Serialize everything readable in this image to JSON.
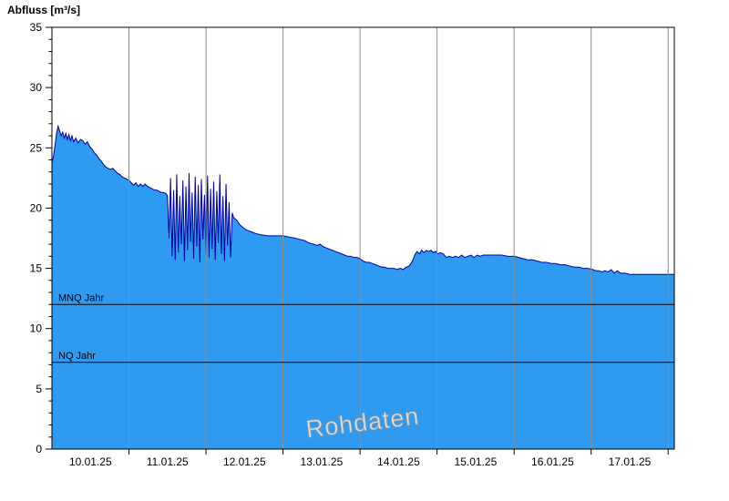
{
  "chart_data": {
    "type": "area",
    "title": "Abfluss [m³/s]",
    "series_name": "Abfluss",
    "unit": "m³/s",
    "watermark": "Rohdaten",
    "ylim": [
      0,
      35
    ],
    "xlim": [
      0,
      8.08
    ],
    "x_unit": "days from 10.01.25 00:00",
    "y_ticks": [
      0,
      5,
      10,
      15,
      20,
      25,
      30,
      35
    ],
    "x_day_labels": [
      "10.01.25",
      "11.01.25",
      "12.01.25",
      "13.01.25",
      "14.01.25",
      "15.01.25",
      "16.01.25",
      "17.01.25"
    ],
    "x_gridline_positions": [
      1,
      2,
      3,
      4,
      5,
      6,
      7,
      8
    ],
    "grid": "vertical-only",
    "legend": "none",
    "reference_lines": [
      {
        "label": "MNQ Jahr",
        "value": 12
      },
      {
        "label": "NQ Jahr",
        "value": 7.2
      }
    ],
    "colors": {
      "fill": "#2E9BF0",
      "line": "#0000A0",
      "grid": "#8c8c8c",
      "reference": "#000000",
      "watermark_fill": "#e2e2e2",
      "watermark_outline": "#9e9e9e",
      "axis": "#000000",
      "background": "#ffffff"
    },
    "points": [
      [
        0,
        23.8
      ],
      [
        0.02,
        24.3
      ],
      [
        0.04,
        25.2
      ],
      [
        0.06,
        26.2
      ],
      [
        0.08,
        26.8
      ],
      [
        0.1,
        26.4
      ],
      [
        0.12,
        26.0
      ],
      [
        0.14,
        26.3
      ],
      [
        0.16,
        25.8
      ],
      [
        0.18,
        26.2
      ],
      [
        0.2,
        25.7
      ],
      [
        0.22,
        26.1
      ],
      [
        0.24,
        25.6
      ],
      [
        0.26,
        26.0
      ],
      [
        0.28,
        25.5
      ],
      [
        0.31,
        25.8
      ],
      [
        0.34,
        25.4
      ],
      [
        0.37,
        25.7
      ],
      [
        0.4,
        25.6
      ],
      [
        0.43,
        25.3
      ],
      [
        0.46,
        25.5
      ],
      [
        0.49,
        25.1
      ],
      [
        0.52,
        24.9
      ],
      [
        0.55,
        24.6
      ],
      [
        0.58,
        24.4
      ],
      [
        0.61,
        24.1
      ],
      [
        0.64,
        23.9
      ],
      [
        0.67,
        23.6
      ],
      [
        0.7,
        23.4
      ],
      [
        0.73,
        23.3
      ],
      [
        0.76,
        23.2
      ],
      [
        0.79,
        23.3
      ],
      [
        0.82,
        23.1
      ],
      [
        0.85,
        22.9
      ],
      [
        0.88,
        22.8
      ],
      [
        0.91,
        22.6
      ],
      [
        0.94,
        22.5
      ],
      [
        0.97,
        22.4
      ],
      [
        1.0,
        22.3
      ],
      [
        1.03,
        22.1
      ],
      [
        1.06,
        21.9
      ],
      [
        1.09,
        22.1
      ],
      [
        1.12,
        21.8
      ],
      [
        1.15,
        22.0
      ],
      [
        1.18,
        21.8
      ],
      [
        1.21,
        22.0
      ],
      [
        1.24,
        21.8
      ],
      [
        1.27,
        21.7
      ],
      [
        1.3,
        21.6
      ],
      [
        1.33,
        21.5
      ],
      [
        1.36,
        21.5
      ],
      [
        1.39,
        21.4
      ],
      [
        1.42,
        21.3
      ],
      [
        1.45,
        21.3
      ],
      [
        1.48,
        21.2
      ],
      [
        1.5,
        21.0
      ],
      [
        1.52,
        17.5
      ],
      [
        1.54,
        22.5
      ],
      [
        1.56,
        16.0
      ],
      [
        1.58,
        21.5
      ],
      [
        1.6,
        15.7
      ],
      [
        1.62,
        22.8
      ],
      [
        1.64,
        16.3
      ],
      [
        1.66,
        21.0
      ],
      [
        1.68,
        17.0
      ],
      [
        1.7,
        22.3
      ],
      [
        1.72,
        15.6
      ],
      [
        1.74,
        21.8
      ],
      [
        1.76,
        16.5
      ],
      [
        1.78,
        22.9
      ],
      [
        1.8,
        17.2
      ],
      [
        1.82,
        21.3
      ],
      [
        1.84,
        15.8
      ],
      [
        1.86,
        22.6
      ],
      [
        1.88,
        16.8
      ],
      [
        1.9,
        21.9
      ],
      [
        1.92,
        15.5
      ],
      [
        1.94,
        22.4
      ],
      [
        1.96,
        17.4
      ],
      [
        1.98,
        21.1
      ],
      [
        2.0,
        16.1
      ],
      [
        2.02,
        22.7
      ],
      [
        2.04,
        15.9
      ],
      [
        2.06,
        21.6
      ],
      [
        2.08,
        16.6
      ],
      [
        2.1,
        22.2
      ],
      [
        2.12,
        15.7
      ],
      [
        2.14,
        21.4
      ],
      [
        2.16,
        17.1
      ],
      [
        2.18,
        22.8
      ],
      [
        2.2,
        16.2
      ],
      [
        2.22,
        21.0
      ],
      [
        2.24,
        15.6
      ],
      [
        2.26,
        22.0
      ],
      [
        2.28,
        16.9
      ],
      [
        2.3,
        20.5
      ],
      [
        2.32,
        15.9
      ],
      [
        2.34,
        19.6
      ],
      [
        2.36,
        19.2
      ],
      [
        2.4,
        19.0
      ],
      [
        2.44,
        18.6
      ],
      [
        2.48,
        18.4
      ],
      [
        2.52,
        18.2
      ],
      [
        2.56,
        18.1
      ],
      [
        2.6,
        18.0
      ],
      [
        2.64,
        17.9
      ],
      [
        2.7,
        17.8
      ],
      [
        2.8,
        17.7
      ],
      [
        2.9,
        17.7
      ],
      [
        3.0,
        17.7
      ],
      [
        3.08,
        17.6
      ],
      [
        3.16,
        17.5
      ],
      [
        3.22,
        17.4
      ],
      [
        3.28,
        17.3
      ],
      [
        3.34,
        17.1
      ],
      [
        3.4,
        17.0
      ],
      [
        3.44,
        16.9
      ],
      [
        3.48,
        17.0
      ],
      [
        3.52,
        16.8
      ],
      [
        3.56,
        16.7
      ],
      [
        3.6,
        16.6
      ],
      [
        3.64,
        16.5
      ],
      [
        3.68,
        16.4
      ],
      [
        3.72,
        16.3
      ],
      [
        3.76,
        16.2
      ],
      [
        3.8,
        16.1
      ],
      [
        3.84,
        16.0
      ],
      [
        3.88,
        16.0
      ],
      [
        3.92,
        15.9
      ],
      [
        3.96,
        15.9
      ],
      [
        4.0,
        15.8
      ],
      [
        4.04,
        15.6
      ],
      [
        4.08,
        15.5
      ],
      [
        4.12,
        15.5
      ],
      [
        4.16,
        15.4
      ],
      [
        4.2,
        15.3
      ],
      [
        4.24,
        15.2
      ],
      [
        4.28,
        15.1
      ],
      [
        4.32,
        15.1
      ],
      [
        4.36,
        15.0
      ],
      [
        4.4,
        15.0
      ],
      [
        4.44,
        15.0
      ],
      [
        4.48,
        14.9
      ],
      [
        4.52,
        15.0
      ],
      [
        4.56,
        14.9
      ],
      [
        4.6,
        15.1
      ],
      [
        4.64,
        15.2
      ],
      [
        4.68,
        15.6
      ],
      [
        4.71,
        16.1
      ],
      [
        4.74,
        16.4
      ],
      [
        4.77,
        16.2
      ],
      [
        4.8,
        16.5
      ],
      [
        4.83,
        16.3
      ],
      [
        4.86,
        16.5
      ],
      [
        4.89,
        16.4
      ],
      [
        4.92,
        16.5
      ],
      [
        4.95,
        16.3
      ],
      [
        4.98,
        16.4
      ],
      [
        5.01,
        16.2
      ],
      [
        5.04,
        16.3
      ],
      [
        5.08,
        16.2
      ],
      [
        5.12,
        15.9
      ],
      [
        5.16,
        16.0
      ],
      [
        5.2,
        15.9
      ],
      [
        5.24,
        16.0
      ],
      [
        5.28,
        15.9
      ],
      [
        5.32,
        16.1
      ],
      [
        5.36,
        15.9
      ],
      [
        5.4,
        16.0
      ],
      [
        5.44,
        16.1
      ],
      [
        5.48,
        15.9
      ],
      [
        5.52,
        16.1
      ],
      [
        5.56,
        16.0
      ],
      [
        5.6,
        16.1
      ],
      [
        5.68,
        16.1
      ],
      [
        5.76,
        16.1
      ],
      [
        5.84,
        16.1
      ],
      [
        5.92,
        16.0
      ],
      [
        6.0,
        16.0
      ],
      [
        6.06,
        15.9
      ],
      [
        6.12,
        15.8
      ],
      [
        6.18,
        15.7
      ],
      [
        6.24,
        15.7
      ],
      [
        6.3,
        15.6
      ],
      [
        6.36,
        15.5
      ],
      [
        6.42,
        15.5
      ],
      [
        6.48,
        15.4
      ],
      [
        6.54,
        15.4
      ],
      [
        6.6,
        15.3
      ],
      [
        6.66,
        15.3
      ],
      [
        6.72,
        15.2
      ],
      [
        6.78,
        15.1
      ],
      [
        6.84,
        15.1
      ],
      [
        6.9,
        15.0
      ],
      [
        6.96,
        15.0
      ],
      [
        7.02,
        14.9
      ],
      [
        7.06,
        14.8
      ],
      [
        7.1,
        14.8
      ],
      [
        7.14,
        14.7
      ],
      [
        7.18,
        14.8
      ],
      [
        7.22,
        14.7
      ],
      [
        7.26,
        14.9
      ],
      [
        7.3,
        14.6
      ],
      [
        7.34,
        14.8
      ],
      [
        7.38,
        14.6
      ],
      [
        7.44,
        14.6
      ],
      [
        7.5,
        14.5
      ],
      [
        7.6,
        14.5
      ],
      [
        7.75,
        14.5
      ],
      [
        7.9,
        14.5
      ],
      [
        8.08,
        14.5
      ]
    ]
  }
}
